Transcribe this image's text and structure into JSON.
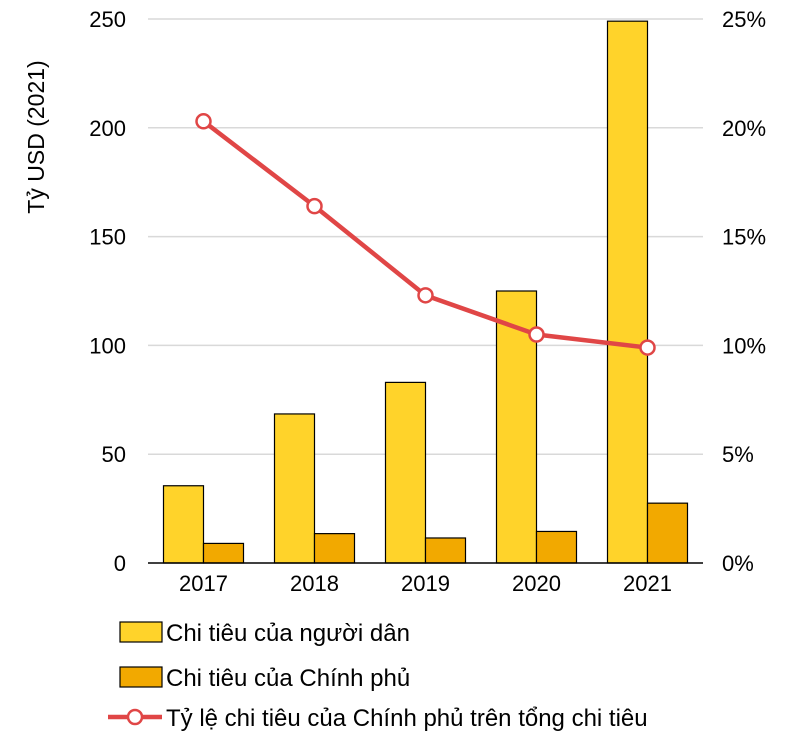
{
  "chart_data": {
    "type": "bar",
    "categories": [
      "2017",
      "2018",
      "2019",
      "2020",
      "2021"
    ],
    "ylabel": "Tỷ USD (2021)",
    "ylim": [
      0,
      250
    ],
    "y_ticks": [
      "0",
      "50",
      "100",
      "150",
      "200",
      "250"
    ],
    "y2lim": [
      0,
      25
    ],
    "y2_ticks": [
      "0%",
      "5%",
      "10%",
      "15%",
      "20%",
      "25%"
    ],
    "grid": true,
    "legend_position": "bottom",
    "series": [
      {
        "name": "Chi tiêu của người dân",
        "type": "bar",
        "axis": "left",
        "color": "#FFD32A",
        "values": [
          35.5,
          68.5,
          83,
          125,
          249
        ]
      },
      {
        "name": "Chi tiêu của Chính phủ",
        "type": "bar",
        "axis": "left",
        "color": "#F2A900",
        "values": [
          9,
          13.5,
          11.5,
          14.5,
          27.5
        ]
      },
      {
        "name": "Tỷ lệ chi tiêu của Chính phủ trên tổng chi tiêu",
        "type": "line",
        "axis": "right",
        "color": "#E04646",
        "values": [
          20.3,
          16.4,
          12.3,
          10.5,
          9.9
        ]
      }
    ]
  }
}
